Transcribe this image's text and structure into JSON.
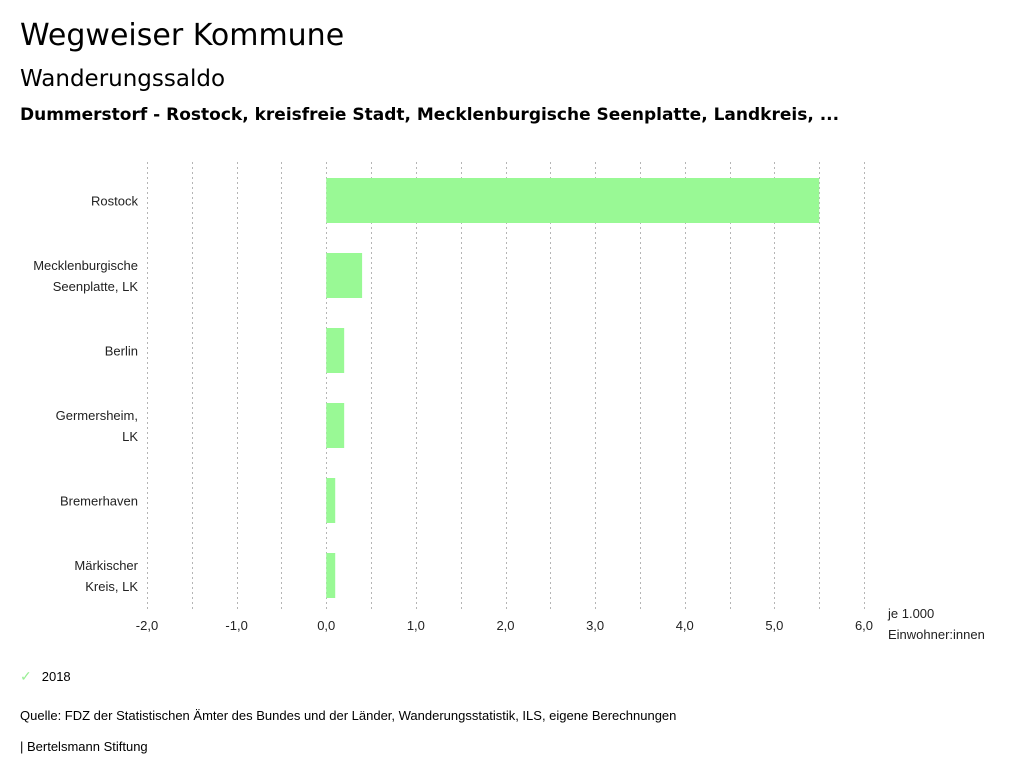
{
  "header": {
    "title": "Wegweiser Kommune",
    "subtitle": "Wanderungssaldo",
    "description": "Dummerstorf - Rostock, kreisfreie Stadt, Mecklenburgische Seenplatte, Landkreis, ..."
  },
  "chart_data": {
    "type": "bar",
    "orientation": "horizontal",
    "title": "Wanderungssaldo",
    "categories": [
      [
        "Rostock"
      ],
      [
        "Mecklenburgische",
        "Seenplatte, LK"
      ],
      [
        "Berlin"
      ],
      [
        "Germersheim,",
        "LK"
      ],
      [
        "Bremerhaven"
      ],
      [
        "Märkischer",
        "Kreis, LK"
      ]
    ],
    "series": [
      {
        "name": "2018",
        "color": "#99f995",
        "values": [
          5.5,
          0.4,
          0.2,
          0.2,
          0.1,
          0.1
        ]
      }
    ],
    "xlim": [
      -2.0,
      6.0
    ],
    "xticks": [
      -2,
      -1,
      0,
      1,
      2,
      3,
      4,
      5,
      6
    ],
    "xtick_labels": [
      "-2,0",
      "-1,0",
      "0,0",
      "1,0",
      "2,0",
      "3,0",
      "4,0",
      "5,0",
      "6,0"
    ],
    "grid_step": 0.5,
    "grid": true,
    "xlabel": [
      "je 1.000",
      "Einwohner:innen"
    ],
    "legend_position": "bottom-left"
  },
  "legend": {
    "label": "2018",
    "icon": "check-icon",
    "color": "#99ef95"
  },
  "footer": {
    "source": "Quelle: FDZ der Statistischen Ämter des Bundes und der Länder, Wanderungsstatistik, ILS, eigene Berechnungen",
    "brand": "| Bertelsmann Stiftung"
  }
}
